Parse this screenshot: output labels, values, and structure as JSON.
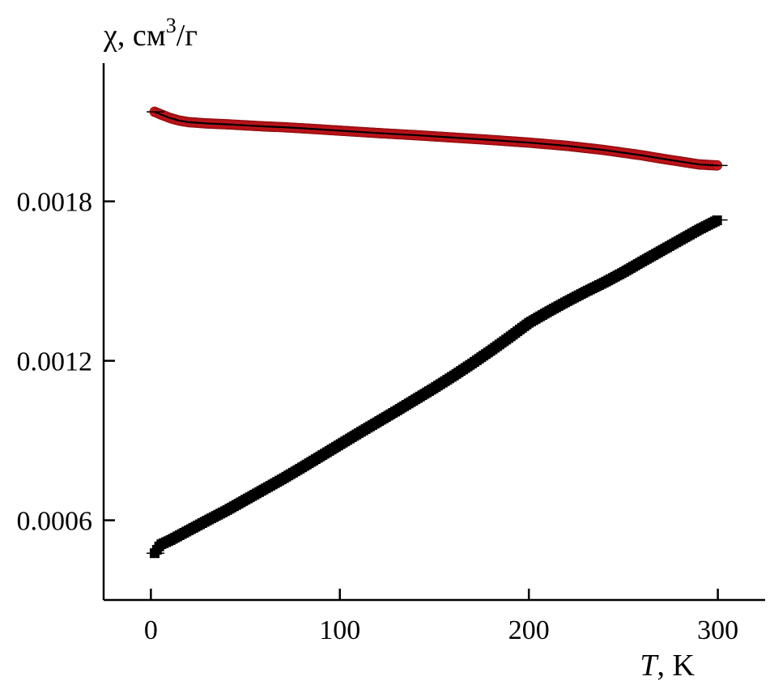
{
  "chart_data": {
    "type": "scatter",
    "title": "",
    "ylabel": "χ, см³/г",
    "ylabel_parts": {
      "symbol": "χ, см",
      "exp": "3",
      "unit": "/г"
    },
    "xlabel_parts": {
      "symbol": "T",
      "unit": ", K"
    },
    "xlim": [
      -25,
      325
    ],
    "ylim": [
      0.0003,
      0.00232
    ],
    "x_ticks": [
      0,
      100,
      200,
      300
    ],
    "x_tick_labels": [
      "0",
      "100",
      "200",
      "300"
    ],
    "y_ticks": [
      0.0006,
      0.0012,
      0.0018
    ],
    "y_tick_labels": [
      "0.0006",
      "0.0012",
      "0.0018"
    ],
    "grid": false,
    "legend": "none",
    "series": [
      {
        "marker": "circle",
        "color": "#d0161c",
        "fit_color": "#000000",
        "x": [
          2,
          5,
          10,
          15,
          20,
          30,
          40,
          50,
          60,
          70,
          80,
          100,
          120,
          140,
          160,
          180,
          200,
          220,
          240,
          260,
          270,
          280,
          290,
          300
        ],
        "y": [
          0.002137,
          0.002128,
          0.002114,
          0.002104,
          0.002098,
          0.002093,
          0.00209,
          0.002086,
          0.002082,
          0.002079,
          0.002075,
          0.002066,
          0.002057,
          0.002049,
          0.00204,
          0.002031,
          0.002021,
          0.002009,
          0.001993,
          0.001973,
          0.001961,
          0.00195,
          0.001939,
          0.001935
        ]
      },
      {
        "marker": "square",
        "color": "#000000",
        "fit_color": "#000000",
        "x": [
          2,
          5,
          10,
          20,
          30,
          40,
          50,
          60,
          70,
          80,
          90,
          100,
          110,
          120,
          130,
          140,
          150,
          160,
          170,
          180,
          190,
          200,
          210,
          220,
          230,
          240,
          250,
          260,
          270,
          280,
          290,
          300
        ],
        "y": [
          0.000476,
          0.000508,
          0.000524,
          0.000562,
          0.0006,
          0.000637,
          0.000677,
          0.000717,
          0.000757,
          0.000799,
          0.000842,
          0.000885,
          0.000928,
          0.00097,
          0.001012,
          0.001055,
          0.001098,
          0.001143,
          0.00119,
          0.001239,
          0.00129,
          0.001343,
          0.001384,
          0.001423,
          0.00146,
          0.001495,
          0.001533,
          0.001574,
          0.001614,
          0.001654,
          0.001694,
          0.00173
        ]
      }
    ]
  }
}
